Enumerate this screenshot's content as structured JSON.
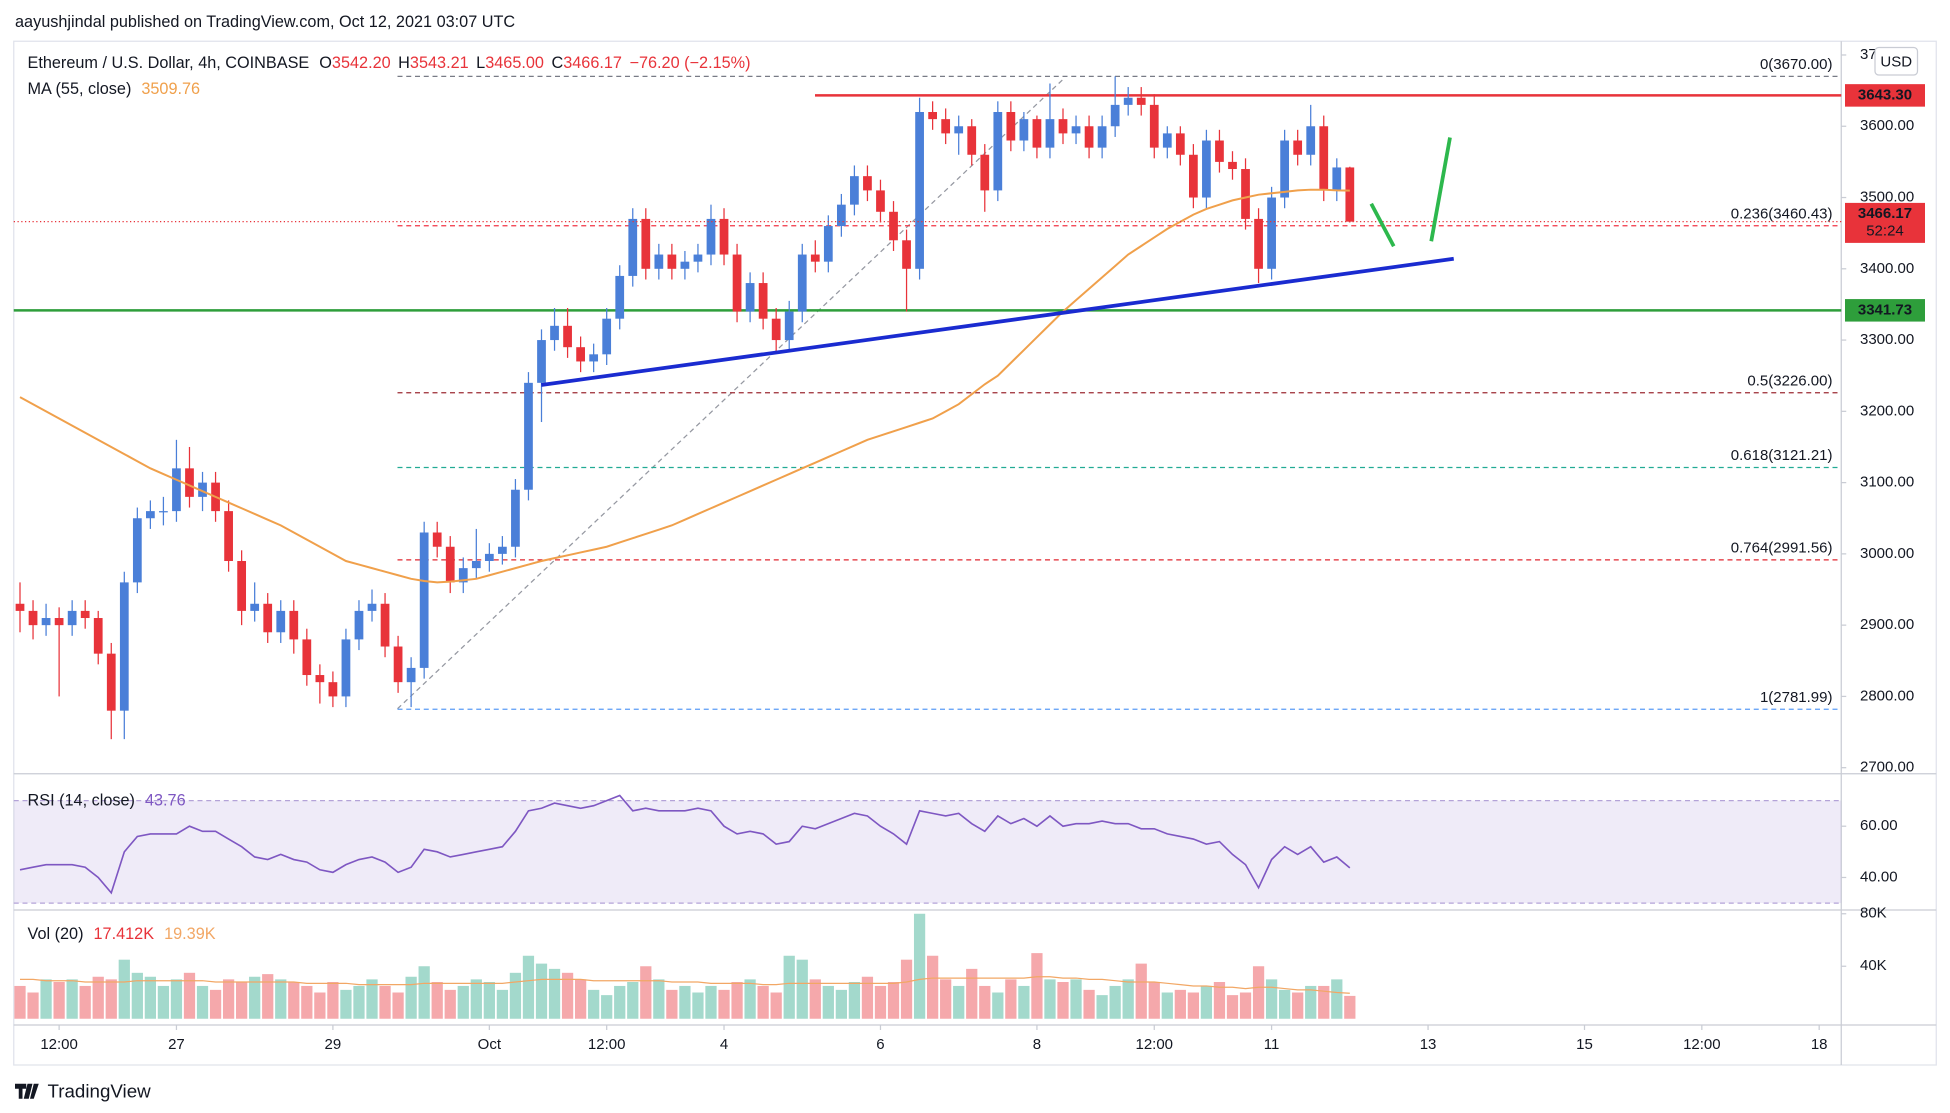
{
  "header": {
    "published": "aayushjindal published on TradingView.com, Oct 12, 2021 03:07 UTC",
    "symbol": "Ethereum / U.S. Dollar, 4h, COINBASE",
    "ohlc": [
      {
        "key": "O",
        "value": "3542.20"
      },
      {
        "key": "H",
        "value": "3543.21"
      },
      {
        "key": "L",
        "value": "3465.00"
      },
      {
        "key": "C",
        "value": "3466.17"
      }
    ],
    "change": "−76.20 (−2.15%)",
    "ma_label": "MA (55, close)",
    "ma_value": "3509.76",
    "rsi_label": "RSI (14, close)",
    "rsi_value": "43.76",
    "vol_label": "Vol (20)",
    "vol_value": "17.412K",
    "vol_ma_value": "19.39K",
    "currency": "USD",
    "countdown": "52:24"
  },
  "footer": {
    "brand": "TradingView"
  },
  "chart_data": [
    {
      "type": "candlestick",
      "up_color": "#4a7fd8",
      "down_color": "#e8333a",
      "ma_color": "#f0a04b",
      "ylim": [
        2695,
        3707
      ],
      "yticks": [
        {
          "value": 2700,
          "label": "2700.00"
        },
        {
          "value": 2800,
          "label": "2800.00"
        },
        {
          "value": 2900,
          "label": "2900.00"
        },
        {
          "value": 3000,
          "label": "3000.00"
        },
        {
          "value": 3100,
          "label": "3100.00"
        },
        {
          "value": 3200,
          "label": "3200.00"
        },
        {
          "value": 3300,
          "label": "3300.00"
        },
        {
          "value": 3400,
          "label": "3400.00"
        },
        {
          "value": 3500,
          "label": "3500.00"
        },
        {
          "value": 3600,
          "label": "3600.00"
        },
        {
          "value": 3700,
          "label": "3700.00"
        }
      ],
      "xticks": [
        {
          "value": 3,
          "label": "12:00"
        },
        {
          "value": 12,
          "label": "27"
        },
        {
          "value": 24,
          "label": "29"
        },
        {
          "value": 36,
          "label": "Oct"
        },
        {
          "value": 45,
          "label": "12:00"
        },
        {
          "value": 54,
          "label": "4"
        },
        {
          "value": 66,
          "label": "6"
        },
        {
          "value": 78,
          "label": "8"
        },
        {
          "value": 87,
          "label": "12:00"
        },
        {
          "value": 96,
          "label": "11"
        },
        {
          "value": 108,
          "label": "13"
        },
        {
          "value": 120,
          "label": "15"
        },
        {
          "value": 129,
          "label": "12:00"
        },
        {
          "value": 138,
          "label": "18"
        }
      ],
      "levels": [
        {
          "value": 3643.3,
          "label": "3643.30",
          "color": "#e8333a"
        },
        {
          "value": 3341.73,
          "label": "3341.73",
          "color": "#2e9e3b"
        }
      ],
      "fib": [
        {
          "value": 3670,
          "label": "0(3670.00)",
          "color": "#787b86"
        },
        {
          "value": 3460.43,
          "label": "0.236(3460.43)",
          "color": "#f23645"
        },
        {
          "value": 3226,
          "label": "0.5(3226.00)",
          "color": "#9c2b34"
        },
        {
          "value": 3121.21,
          "label": "0.618(3121.21)",
          "color": "#22ab94"
        },
        {
          "value": 2991.56,
          "label": "0.764(2991.56)",
          "color": "#e0262f"
        },
        {
          "value": 2781.99,
          "label": "1(2781.99)",
          "color": "#5b9cf6"
        }
      ],
      "candles": [
        [
          2930,
          2960,
          2890,
          2920
        ],
        [
          2920,
          2935,
          2880,
          2900
        ],
        [
          2900,
          2930,
          2885,
          2910
        ],
        [
          2910,
          2925,
          2800,
          2900
        ],
        [
          2900,
          2935,
          2885,
          2920
        ],
        [
          2920,
          2935,
          2895,
          2910
        ],
        [
          2910,
          2920,
          2845,
          2860
        ],
        [
          2860,
          2875,
          2740,
          2780
        ],
        [
          2780,
          2975,
          2740,
          2960
        ],
        [
          2960,
          3065,
          2945,
          3050
        ],
        [
          3050,
          3075,
          3035,
          3060
        ],
        [
          3060,
          3080,
          3040,
          3060
        ],
        [
          3060,
          3160,
          3045,
          3120
        ],
        [
          3120,
          3150,
          3065,
          3080
        ],
        [
          3080,
          3115,
          3060,
          3100
        ],
        [
          3100,
          3115,
          3045,
          3060
        ],
        [
          3060,
          3075,
          2975,
          2990
        ],
        [
          2990,
          3005,
          2900,
          2920
        ],
        [
          2920,
          2960,
          2905,
          2930
        ],
        [
          2930,
          2945,
          2875,
          2890
        ],
        [
          2890,
          2935,
          2875,
          2920
        ],
        [
          2920,
          2935,
          2860,
          2880
        ],
        [
          2880,
          2895,
          2815,
          2830
        ],
        [
          2830,
          2845,
          2790,
          2820
        ],
        [
          2820,
          2835,
          2785,
          2800
        ],
        [
          2800,
          2895,
          2785,
          2880
        ],
        [
          2880,
          2935,
          2865,
          2920
        ],
        [
          2920,
          2950,
          2905,
          2930
        ],
        [
          2930,
          2945,
          2855,
          2870
        ],
        [
          2870,
          2885,
          2805,
          2820
        ],
        [
          2820,
          2855,
          2785,
          2840
        ],
        [
          2840,
          3045,
          2825,
          3030
        ],
        [
          3030,
          3045,
          2995,
          3010
        ],
        [
          3010,
          3025,
          2945,
          2960
        ],
        [
          2960,
          2995,
          2945,
          2980
        ],
        [
          2980,
          3035,
          2965,
          2990
        ],
        [
          2990,
          3015,
          2975,
          3000
        ],
        [
          3000,
          3025,
          2985,
          3010
        ],
        [
          3010,
          3105,
          2995,
          3090
        ],
        [
          3090,
          3255,
          3075,
          3240
        ],
        [
          3240,
          3315,
          3185,
          3300
        ],
        [
          3300,
          3345,
          3285,
          3320
        ],
        [
          3320,
          3345,
          3275,
          3290
        ],
        [
          3290,
          3305,
          3255,
          3270
        ],
        [
          3270,
          3295,
          3255,
          3280
        ],
        [
          3280,
          3345,
          3265,
          3330
        ],
        [
          3330,
          3405,
          3315,
          3390
        ],
        [
          3390,
          3485,
          3375,
          3470
        ],
        [
          3470,
          3485,
          3385,
          3400
        ],
        [
          3400,
          3435,
          3385,
          3420
        ],
        [
          3420,
          3435,
          3385,
          3400
        ],
        [
          3400,
          3425,
          3385,
          3410
        ],
        [
          3410,
          3435,
          3395,
          3420
        ],
        [
          3420,
          3490,
          3405,
          3470
        ],
        [
          3470,
          3485,
          3405,
          3420
        ],
        [
          3420,
          3435,
          3325,
          3340
        ],
        [
          3340,
          3395,
          3325,
          3380
        ],
        [
          3380,
          3395,
          3315,
          3330
        ],
        [
          3330,
          3345,
          3285,
          3300
        ],
        [
          3300,
          3355,
          3285,
          3340
        ],
        [
          3340,
          3435,
          3325,
          3420
        ],
        [
          3420,
          3440,
          3395,
          3410
        ],
        [
          3410,
          3475,
          3395,
          3460
        ],
        [
          3460,
          3505,
          3445,
          3490
        ],
        [
          3490,
          3545,
          3475,
          3530
        ],
        [
          3530,
          3545,
          3495,
          3510
        ],
        [
          3510,
          3525,
          3465,
          3480
        ],
        [
          3480,
          3495,
          3425,
          3440
        ],
        [
          3440,
          3455,
          3340,
          3400
        ],
        [
          3400,
          3640,
          3385,
          3620
        ],
        [
          3620,
          3635,
          3595,
          3610
        ],
        [
          3610,
          3625,
          3575,
          3590
        ],
        [
          3590,
          3615,
          3560,
          3600
        ],
        [
          3600,
          3610,
          3545,
          3560
        ],
        [
          3560,
          3575,
          3480,
          3510
        ],
        [
          3510,
          3635,
          3495,
          3620
        ],
        [
          3620,
          3635,
          3565,
          3580
        ],
        [
          3580,
          3620,
          3565,
          3610
        ],
        [
          3610,
          3615,
          3555,
          3570
        ],
        [
          3570,
          3660,
          3555,
          3610
        ],
        [
          3610,
          3625,
          3575,
          3590
        ],
        [
          3590,
          3615,
          3575,
          3600
        ],
        [
          3600,
          3615,
          3555,
          3570
        ],
        [
          3570,
          3615,
          3555,
          3600
        ],
        [
          3600,
          3670,
          3585,
          3630
        ],
        [
          3630,
          3655,
          3615,
          3640
        ],
        [
          3640,
          3655,
          3615,
          3630
        ],
        [
          3630,
          3645,
          3555,
          3570
        ],
        [
          3570,
          3600,
          3555,
          3590
        ],
        [
          3590,
          3600,
          3545,
          3560
        ],
        [
          3560,
          3575,
          3485,
          3500
        ],
        [
          3500,
          3595,
          3485,
          3580
        ],
        [
          3580,
          3595,
          3535,
          3550
        ],
        [
          3550,
          3565,
          3525,
          3540
        ],
        [
          3540,
          3555,
          3455,
          3470
        ],
        [
          3470,
          3485,
          3380,
          3400
        ],
        [
          3400,
          3515,
          3385,
          3500
        ],
        [
          3500,
          3595,
          3485,
          3580
        ],
        [
          3580,
          3595,
          3545,
          3560
        ],
        [
          3560,
          3630,
          3545,
          3600
        ],
        [
          3600,
          3615,
          3495,
          3510
        ],
        [
          3510,
          3555,
          3495,
          3542.2
        ],
        [
          3542.2,
          3543.21,
          3465,
          3466.17
        ]
      ],
      "ma": [
        3220,
        3210,
        3200,
        3190,
        3180,
        3170,
        3160,
        3150,
        3140,
        3130,
        3120,
        3112,
        3104,
        3096,
        3088,
        3080,
        3072,
        3064,
        3056,
        3048,
        3040,
        3030,
        3020,
        3010,
        3000,
        2990,
        2985,
        2980,
        2975,
        2970,
        2965,
        2962,
        2960,
        2961,
        2963,
        2965,
        2970,
        2975,
        2980,
        2985,
        2990,
        2994,
        2998,
        3002,
        3006,
        3010,
        3016,
        3022,
        3028,
        3034,
        3040,
        3048,
        3056,
        3064,
        3072,
        3080,
        3088,
        3096,
        3104,
        3112,
        3120,
        3128,
        3136,
        3144,
        3152,
        3160,
        3166,
        3172,
        3178,
        3184,
        3190,
        3200,
        3210,
        3224,
        3238,
        3250,
        3268,
        3286,
        3304,
        3322,
        3340,
        3356,
        3372,
        3388,
        3404,
        3420,
        3432,
        3444,
        3456,
        3466,
        3476,
        3484,
        3490,
        3496,
        3500,
        3504,
        3506,
        3508,
        3510,
        3511,
        3511,
        3510,
        3509.76
      ]
    },
    {
      "type": "line",
      "color": "#7e57c2",
      "band": [
        30,
        70
      ],
      "ylim": [
        27.8,
        79
      ],
      "yticks": [
        {
          "value": 40,
          "label": "40.00"
        },
        {
          "value": 60,
          "label": "60.00"
        }
      ],
      "values": [
        43,
        44,
        45,
        45,
        45,
        44,
        40,
        34,
        50,
        56,
        57,
        57,
        57,
        60,
        58,
        58,
        55,
        52,
        48,
        47,
        49,
        47,
        46,
        43,
        42,
        45,
        47,
        48,
        46,
        42,
        44,
        51,
        50,
        48,
        49,
        50,
        51,
        52,
        58,
        66,
        67,
        69,
        68,
        67,
        68,
        70,
        72,
        66,
        67,
        66,
        66,
        66,
        67,
        66,
        60,
        57,
        58,
        57,
        53,
        54,
        60,
        59,
        61,
        63,
        65,
        64,
        60,
        57,
        53,
        66,
        65,
        64,
        65,
        61,
        58,
        64,
        61,
        63,
        60,
        64,
        60,
        61,
        61,
        62,
        61,
        61,
        59,
        59,
        57,
        56,
        55,
        53,
        54,
        49,
        45,
        36,
        47,
        52,
        49,
        52,
        46,
        48,
        43.76
      ]
    },
    {
      "type": "bar",
      "up_color": "#a3d9cc",
      "down_color": "#f5a8ab",
      "ma_color": "#f2a765",
      "ylim": [
        0,
        80
      ],
      "yticks": [
        {
          "value": 40,
          "label": "40K"
        },
        {
          "value": 80,
          "label": "80K"
        }
      ],
      "values": [
        25,
        20,
        30,
        28,
        30,
        25,
        32,
        30,
        45,
        35,
        32,
        25,
        30,
        35,
        25,
        22,
        30,
        28,
        32,
        34,
        30,
        28,
        25,
        20,
        28,
        22,
        25,
        30,
        25,
        20,
        32,
        40,
        28,
        22,
        25,
        30,
        28,
        22,
        35,
        48,
        42,
        38,
        35,
        30,
        22,
        18,
        25,
        28,
        40,
        30,
        22,
        25,
        20,
        25,
        22,
        28,
        30,
        25,
        20,
        48,
        45,
        30,
        25,
        22,
        28,
        32,
        25,
        28,
        45,
        80,
        48,
        30,
        25,
        38,
        25,
        20,
        30,
        25,
        50,
        30,
        28,
        30,
        22,
        18,
        25,
        30,
        42,
        28,
        20,
        22,
        20,
        25,
        28,
        18,
        20,
        40,
        30,
        22,
        20,
        25,
        25,
        30,
        17.412
      ],
      "ma": [
        30,
        30,
        29,
        29,
        29,
        28,
        28,
        28,
        28,
        29,
        29,
        29,
        29,
        29,
        29,
        28,
        28,
        28,
        28,
        28,
        28,
        28,
        27,
        27,
        27,
        27,
        26,
        26,
        26,
        26,
        26,
        27,
        27,
        27,
        27,
        27,
        27,
        27,
        28,
        29,
        30,
        30,
        30,
        30,
        29,
        29,
        29,
        29,
        29,
        29,
        28,
        28,
        28,
        27,
        27,
        27,
        27,
        26,
        26,
        27,
        27,
        27,
        27,
        27,
        27,
        27,
        27,
        27,
        28,
        30,
        31,
        31,
        31,
        31,
        31,
        31,
        31,
        31,
        32,
        32,
        31,
        31,
        30,
        30,
        29,
        28,
        28,
        28,
        27,
        26,
        25,
        25,
        24,
        24,
        23,
        24,
        24,
        23,
        22,
        22,
        21,
        20,
        19.39
      ]
    }
  ]
}
